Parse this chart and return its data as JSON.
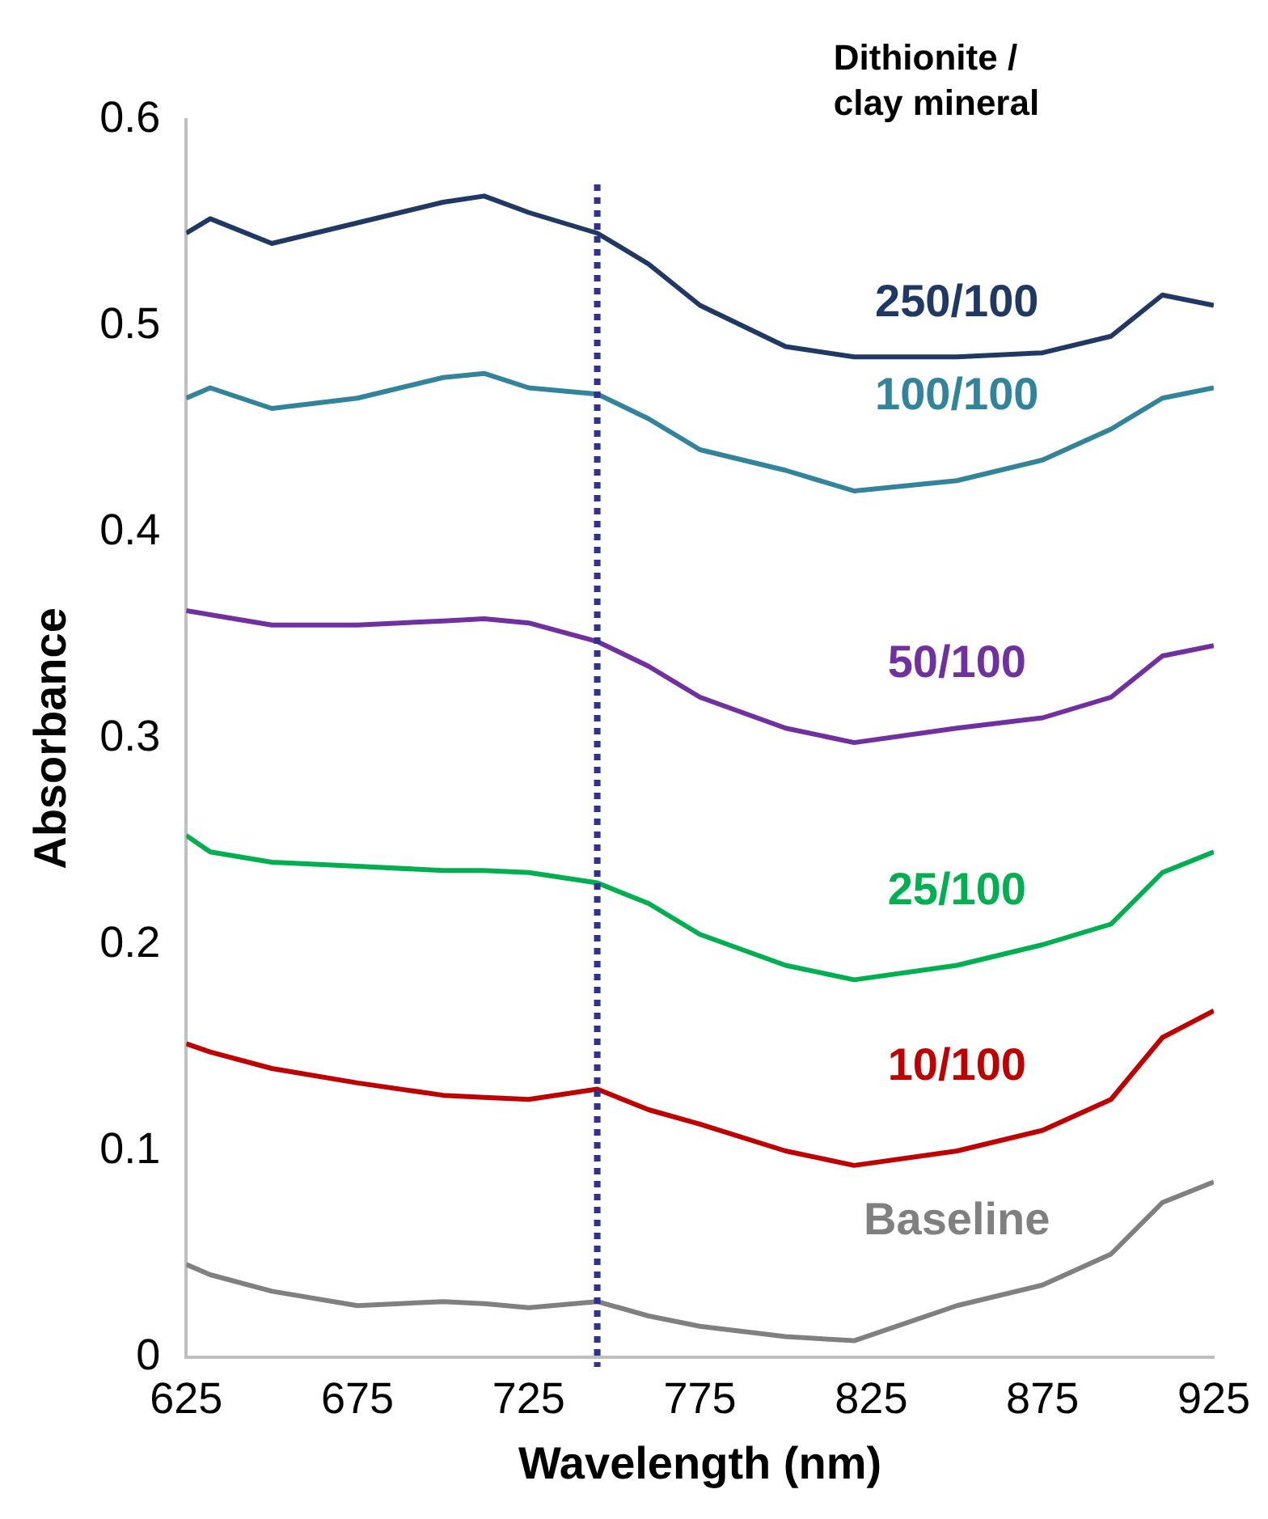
{
  "chart_data": {
    "type": "line",
    "xlabel": "Wavelength (nm)",
    "ylabel": "Absorbance",
    "legend_title": "Dithionite /\nclay mineral",
    "xlim": [
      625,
      925
    ],
    "xticks": [
      625,
      675,
      725,
      775,
      825,
      875,
      925
    ],
    "ylim": [
      0,
      0.6
    ],
    "yticks": [
      0,
      0.1,
      0.2,
      0.3,
      0.4,
      0.5,
      0.6
    ],
    "grid": false,
    "legend": false,
    "marker": "none",
    "line_style": "solid",
    "x": [
      625,
      632,
      650,
      675,
      700,
      712,
      725,
      745,
      760,
      775,
      800,
      820,
      850,
      875,
      895,
      910,
      925
    ],
    "series": [
      {
        "name": "250/100",
        "color": "#1f3864",
        "values": [
          0.545,
          0.552,
          0.54,
          0.55,
          0.56,
          0.563,
          0.555,
          0.545,
          0.53,
          0.51,
          0.49,
          0.485,
          0.485,
          0.487,
          0.495,
          0.515,
          0.51
        ]
      },
      {
        "name": "100/100",
        "color": "#31849b",
        "values": [
          0.465,
          0.47,
          0.46,
          0.465,
          0.475,
          0.477,
          0.47,
          0.467,
          0.455,
          0.44,
          0.43,
          0.42,
          0.425,
          0.435,
          0.45,
          0.465,
          0.47
        ]
      },
      {
        "name": "50/100",
        "color": "#7030a0",
        "values": [
          0.362,
          0.36,
          0.355,
          0.355,
          0.357,
          0.358,
          0.356,
          0.347,
          0.335,
          0.32,
          0.305,
          0.298,
          0.305,
          0.31,
          0.32,
          0.34,
          0.345
        ]
      },
      {
        "name": "25/100",
        "color": "#00b050",
        "values": [
          0.253,
          0.245,
          0.24,
          0.238,
          0.236,
          0.236,
          0.235,
          0.23,
          0.22,
          0.205,
          0.19,
          0.183,
          0.19,
          0.2,
          0.21,
          0.235,
          0.245
        ]
      },
      {
        "name": "10/100",
        "color": "#c00000",
        "values": [
          0.152,
          0.148,
          0.14,
          0.133,
          0.127,
          0.126,
          0.125,
          0.13,
          0.12,
          0.113,
          0.1,
          0.093,
          0.1,
          0.11,
          0.125,
          0.155,
          0.168
        ]
      },
      {
        "name": "Baseline",
        "color": "#808080",
        "values": [
          0.045,
          0.04,
          0.032,
          0.025,
          0.027,
          0.026,
          0.024,
          0.027,
          0.02,
          0.015,
          0.01,
          0.008,
          0.025,
          0.035,
          0.05,
          0.075,
          0.085
        ]
      }
    ],
    "ref_lines": [
      {
        "axis": "x",
        "value": 745,
        "label": null,
        "color": "#2e3192",
        "line_style": "dotted"
      }
    ]
  }
}
